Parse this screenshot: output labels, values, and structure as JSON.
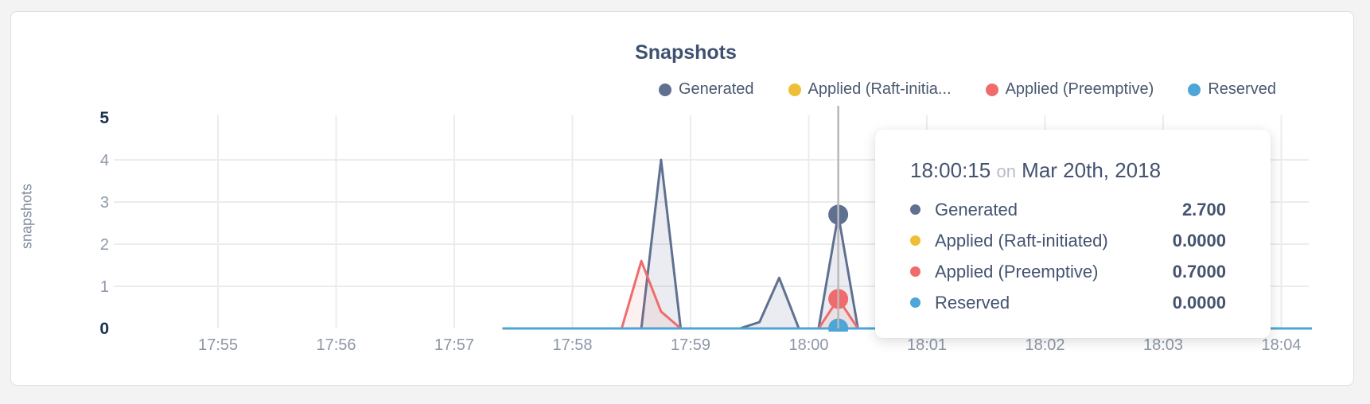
{
  "page_background": "#f3f3f4",
  "card": {
    "background": "#ffffff",
    "border_color": "#dedede"
  },
  "title": {
    "text": "Snapshots",
    "color": "#3e5270"
  },
  "legend": {
    "items": [
      {
        "label": "Generated",
        "color": "#5f7090"
      },
      {
        "label": "Applied (Raft-initia...",
        "color": "#efbe37"
      },
      {
        "label": "Applied (Preemptive)",
        "color": "#f06c6c"
      },
      {
        "label": "Reserved",
        "color": "#4da5d8"
      }
    ]
  },
  "y_axis": {
    "label": "snapshots",
    "ticks": [
      "0",
      "1",
      "2",
      "3",
      "4",
      "5"
    ],
    "emphasized_ticks": [
      "0",
      "5"
    ]
  },
  "x_axis": {
    "ticks": [
      "17:55",
      "17:56",
      "17:57",
      "17:58",
      "17:59",
      "18:00",
      "18:01",
      "18:02",
      "18:03",
      "18:04"
    ]
  },
  "tooltip": {
    "time": "18:00:15",
    "separator": "on",
    "date": "Mar 20th, 2018",
    "rows": [
      {
        "label": "Generated",
        "color": "#5f7090",
        "value": "2.700"
      },
      {
        "label": "Applied (Raft-initiated)",
        "color": "#efbe37",
        "value": "0.0000"
      },
      {
        "label": "Applied (Preemptive)",
        "color": "#f06c6c",
        "value": "0.7000"
      },
      {
        "label": "Reserved",
        "color": "#4da5d8",
        "value": "0.0000"
      }
    ]
  },
  "chart_data": {
    "type": "area",
    "title": "Snapshots",
    "xlabel": "",
    "ylabel": "snapshots",
    "ylim": [
      0,
      5
    ],
    "y_ticks": [
      0,
      1,
      2,
      3,
      4,
      5
    ],
    "x_ticks": [
      "17:55",
      "17:56",
      "17:57",
      "17:58",
      "17:59",
      "18:00",
      "18:01",
      "18:02",
      "18:03",
      "18:04"
    ],
    "grid": true,
    "legend_position": "top-right",
    "hover": {
      "time": "18:00:15",
      "date": "Mar 20th, 2018"
    },
    "series": [
      {
        "name": "Generated",
        "color": "#5f7090",
        "fill": "rgba(95,112,144,0.13)",
        "hover_value": 2.7,
        "points": [
          [
            "17:57:25",
            0
          ],
          [
            "17:58:35",
            0
          ],
          [
            "17:58:45",
            4
          ],
          [
            "17:58:55",
            0
          ],
          [
            "17:59:25",
            0
          ],
          [
            "17:59:35",
            0.15
          ],
          [
            "17:59:45",
            1.2
          ],
          [
            "17:59:55",
            0
          ],
          [
            "18:00:05",
            0
          ],
          [
            "18:00:15",
            2.7
          ],
          [
            "18:00:25",
            0
          ],
          [
            "18:04:15",
            0
          ]
        ]
      },
      {
        "name": "Applied (Raft-initiated)",
        "color": "#efbe37",
        "fill": "none",
        "hover_value": 0,
        "points": [
          [
            "17:57:25",
            0
          ],
          [
            "18:04:15",
            0
          ]
        ]
      },
      {
        "name": "Applied (Preemptive)",
        "color": "#f06c6c",
        "fill": "rgba(240,108,108,0.10)",
        "hover_value": 0.7,
        "points": [
          [
            "17:57:25",
            0
          ],
          [
            "17:58:25",
            0
          ],
          [
            "17:58:35",
            1.6
          ],
          [
            "17:58:45",
            0.4
          ],
          [
            "17:58:55",
            0
          ],
          [
            "18:00:05",
            0
          ],
          [
            "18:00:15",
            0.7
          ],
          [
            "18:00:25",
            0
          ],
          [
            "18:04:15",
            0
          ]
        ]
      },
      {
        "name": "Reserved",
        "color": "#4da5d8",
        "fill": "none",
        "hover_value": 0,
        "points": [
          [
            "17:57:25",
            0
          ],
          [
            "18:04:15",
            0
          ]
        ]
      }
    ]
  }
}
